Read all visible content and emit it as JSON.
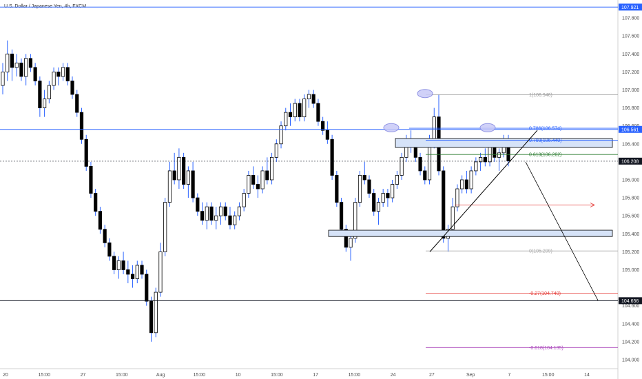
{
  "chart_data": {
    "type": "candlestick",
    "title": "U.S. Dollar / Japanese Yen, 4h, FXCM",
    "ylim": [
      103.9,
      108.0
    ],
    "x_ticks": [
      "20",
      "15:00",
      "27",
      "15:00",
      "Aug",
      "15:00",
      "10",
      "15:00",
      "17",
      "15:00",
      "24",
      "27",
      "Sep",
      "7",
      "15:00",
      "14"
    ],
    "y_ticks": [
      "104.000",
      "104.200",
      "104.400",
      "104.600",
      "105.000",
      "105.200",
      "105.400",
      "105.600",
      "105.800",
      "106.000",
      "106.400",
      "106.600",
      "106.800",
      "107.000",
      "107.200",
      "107.400",
      "107.600",
      "107.800"
    ],
    "price_tags": [
      {
        "label": "107.921",
        "value": 107.921,
        "color": "#2962ff"
      },
      {
        "label": "106.561",
        "value": 106.561,
        "color": "#2962ff"
      },
      {
        "label": "106.208",
        "value": 106.208,
        "color": "#131722"
      },
      {
        "label": "104.656",
        "value": 104.656,
        "color": "#131722"
      }
    ],
    "fib_levels": [
      {
        "label": "1(106.946)",
        "value": 106.946,
        "color": "#999999"
      },
      {
        "label": "0.786(106.574)",
        "value": 106.574,
        "color": "#2962ff"
      },
      {
        "label": "0.709(106.440)",
        "value": 106.44,
        "color": "#2962ff"
      },
      {
        "label": "0.618(106.282)",
        "value": 106.282,
        "color": "#2e7d32"
      },
      {
        "label": "0(105.209)",
        "value": 105.209,
        "color": "#aaaaaa"
      },
      {
        "label": "-0.27(104.740)",
        "value": 104.74,
        "color": "#e53935"
      },
      {
        "label": "-0.618(104.135)",
        "value": 104.135,
        "color": "#ab47bc"
      }
    ],
    "zones": [
      {
        "from": 106.36,
        "to": 106.46
      },
      {
        "from": 105.37,
        "to": 105.44
      }
    ],
    "ohlc": [
      [
        107.05,
        107.3,
        106.95,
        107.2
      ],
      [
        107.2,
        107.55,
        107.1,
        107.4
      ],
      [
        107.4,
        107.45,
        107.1,
        107.25
      ],
      [
        107.25,
        107.4,
        107.15,
        107.3
      ],
      [
        107.3,
        107.35,
        107.1,
        107.15
      ],
      [
        107.15,
        107.4,
        107.05,
        107.35
      ],
      [
        107.35,
        107.4,
        107.2,
        107.25
      ],
      [
        107.25,
        107.3,
        107.05,
        107.1
      ],
      [
        107.1,
        107.15,
        106.7,
        106.8
      ],
      [
        106.8,
        107.0,
        106.7,
        106.9
      ],
      [
        106.9,
        107.1,
        106.85,
        107.05
      ],
      [
        107.05,
        107.25,
        107.0,
        107.2
      ],
      [
        107.2,
        107.25,
        107.05,
        107.15
      ],
      [
        107.15,
        107.3,
        107.1,
        107.25
      ],
      [
        107.25,
        107.3,
        107.05,
        107.1
      ],
      [
        107.1,
        107.15,
        106.9,
        106.95
      ],
      [
        106.95,
        107.0,
        106.7,
        106.75
      ],
      [
        106.75,
        106.8,
        106.4,
        106.45
      ],
      [
        106.45,
        106.5,
        106.1,
        106.15
      ],
      [
        106.15,
        106.2,
        105.8,
        105.85
      ],
      [
        105.85,
        105.9,
        105.6,
        105.65
      ],
      [
        105.65,
        105.7,
        105.4,
        105.45
      ],
      [
        105.45,
        105.5,
        105.25,
        105.3
      ],
      [
        105.3,
        105.35,
        105.1,
        105.15
      ],
      [
        105.15,
        105.2,
        104.95,
        105.0
      ],
      [
        105.0,
        105.15,
        104.9,
        105.1
      ],
      [
        105.1,
        105.2,
        104.95,
        105.0
      ],
      [
        105.0,
        105.1,
        104.85,
        104.95
      ],
      [
        104.95,
        105.05,
        104.8,
        104.9
      ],
      [
        104.9,
        105.1,
        104.85,
        105.05
      ],
      [
        105.05,
        105.1,
        104.9,
        104.95
      ],
      [
        104.95,
        105.0,
        104.6,
        104.65
      ],
      [
        104.65,
        104.7,
        104.2,
        104.3
      ],
      [
        104.3,
        104.8,
        104.25,
        104.75
      ],
      [
        104.75,
        105.3,
        104.7,
        105.2
      ],
      [
        105.2,
        105.8,
        105.15,
        105.75
      ],
      [
        105.75,
        106.2,
        105.7,
        106.1
      ],
      [
        106.1,
        106.3,
        105.95,
        106.0
      ],
      [
        106.0,
        106.35,
        105.9,
        106.25
      ],
      [
        106.25,
        106.3,
        105.9,
        105.95
      ],
      [
        105.95,
        106.15,
        105.8,
        106.1
      ],
      [
        106.1,
        106.2,
        105.75,
        105.8
      ],
      [
        105.8,
        105.85,
        105.6,
        105.65
      ],
      [
        105.65,
        105.75,
        105.5,
        105.55
      ],
      [
        105.55,
        105.75,
        105.45,
        105.7
      ],
      [
        105.7,
        105.75,
        105.5,
        105.55
      ],
      [
        105.55,
        105.7,
        105.45,
        105.6
      ],
      [
        105.6,
        105.75,
        105.5,
        105.7
      ],
      [
        105.7,
        105.75,
        105.55,
        105.6
      ],
      [
        105.6,
        105.7,
        105.45,
        105.5
      ],
      [
        105.5,
        105.65,
        105.45,
        105.6
      ],
      [
        105.6,
        105.75,
        105.55,
        105.7
      ],
      [
        105.7,
        105.9,
        105.65,
        105.85
      ],
      [
        105.85,
        106.1,
        105.8,
        106.05
      ],
      [
        106.05,
        106.15,
        105.9,
        105.95
      ],
      [
        105.95,
        106.05,
        105.8,
        105.9
      ],
      [
        105.9,
        106.15,
        105.85,
        106.1
      ],
      [
        106.1,
        106.25,
        105.95,
        106.0
      ],
      [
        106.0,
        106.3,
        105.95,
        106.25
      ],
      [
        106.25,
        106.45,
        106.2,
        106.4
      ],
      [
        106.4,
        106.65,
        106.35,
        106.6
      ],
      [
        106.6,
        106.8,
        106.55,
        106.75
      ],
      [
        106.75,
        106.85,
        106.6,
        106.7
      ],
      [
        106.7,
        106.9,
        106.65,
        106.85
      ],
      [
        106.85,
        106.9,
        106.65,
        106.7
      ],
      [
        106.7,
        106.95,
        106.65,
        106.9
      ],
      [
        106.9,
        107.0,
        106.8,
        106.95
      ],
      [
        106.95,
        107.0,
        106.8,
        106.85
      ],
      [
        106.85,
        106.9,
        106.6,
        106.65
      ],
      [
        106.65,
        106.7,
        106.5,
        106.55
      ],
      [
        106.55,
        106.65,
        106.4,
        106.45
      ],
      [
        106.45,
        106.5,
        106.0,
        106.05
      ],
      [
        106.05,
        106.1,
        105.7,
        105.75
      ],
      [
        105.75,
        105.8,
        105.4,
        105.45
      ],
      [
        105.45,
        105.5,
        105.2,
        105.25
      ],
      [
        105.25,
        105.4,
        105.1,
        105.35
      ],
      [
        105.35,
        105.8,
        105.3,
        105.75
      ],
      [
        105.75,
        106.1,
        105.7,
        106.05
      ],
      [
        106.05,
        106.2,
        105.95,
        106.0
      ],
      [
        106.0,
        106.05,
        105.8,
        105.85
      ],
      [
        105.85,
        105.9,
        105.6,
        105.65
      ],
      [
        105.65,
        105.8,
        105.5,
        105.75
      ],
      [
        105.75,
        105.9,
        105.7,
        105.85
      ],
      [
        105.85,
        105.9,
        105.7,
        105.8
      ],
      [
        105.8,
        106.0,
        105.75,
        105.95
      ],
      [
        105.95,
        106.1,
        105.9,
        106.05
      ],
      [
        106.05,
        106.3,
        106.0,
        106.25
      ],
      [
        106.25,
        106.5,
        106.2,
        106.45
      ],
      [
        106.45,
        106.55,
        106.3,
        106.4
      ],
      [
        106.4,
        106.45,
        106.2,
        106.25
      ],
      [
        106.25,
        106.3,
        106.05,
        106.1
      ],
      [
        106.1,
        106.15,
        105.95,
        106.0
      ],
      [
        106.0,
        106.5,
        105.95,
        106.4
      ],
      [
        106.4,
        106.8,
        106.35,
        106.7
      ],
      [
        106.7,
        106.95,
        106.05,
        106.1
      ],
      [
        106.1,
        106.15,
        105.3,
        105.35
      ],
      [
        105.35,
        105.5,
        105.2,
        105.45
      ],
      [
        105.45,
        105.8,
        105.4,
        105.7
      ],
      [
        105.7,
        105.95,
        105.65,
        105.9
      ],
      [
        105.9,
        106.05,
        105.85,
        106.0
      ],
      [
        106.0,
        106.1,
        105.85,
        105.9
      ],
      [
        105.9,
        106.15,
        105.85,
        106.1
      ],
      [
        106.1,
        106.25,
        106.05,
        106.2
      ],
      [
        106.2,
        106.3,
        106.1,
        106.25
      ],
      [
        106.25,
        106.35,
        106.15,
        106.2
      ],
      [
        106.2,
        106.45,
        106.15,
        106.4
      ],
      [
        106.4,
        106.45,
        106.2,
        106.25
      ],
      [
        106.25,
        106.35,
        106.1,
        106.3
      ],
      [
        106.3,
        106.5,
        106.25,
        106.45
      ],
      [
        106.45,
        106.5,
        106.15,
        106.21
      ]
    ]
  }
}
